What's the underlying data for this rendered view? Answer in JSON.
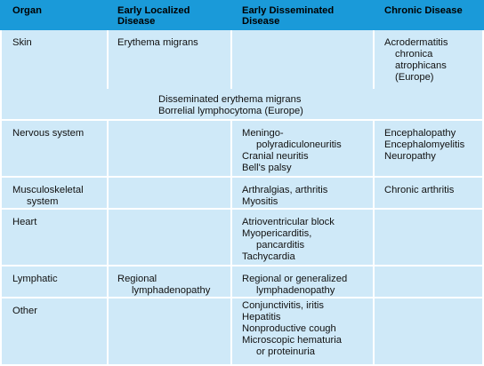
{
  "headers": [
    "Organ",
    "Early Localized|Disease",
    "Early Disseminated|Disease",
    "Chronic Disease"
  ],
  "rows": [
    {
      "organ": [
        "Skin"
      ],
      "localized": [
        "Erythema migrans"
      ],
      "disseminated": [],
      "chronic": [
        "Acrodermatitis",
        "chronica",
        "atrophicans",
        "(Europe)"
      ],
      "spanning": [
        "Disseminated erythema migrans",
        "Borrelial lymphocytoma (Europe)"
      ]
    },
    {
      "organ": [
        "Nervous system"
      ],
      "localized": [],
      "disseminated": [
        "Meningo-",
        "polyradiculoneuritis",
        "Cranial neuritis",
        "Bell's palsy"
      ],
      "chronic": [
        "Encephalopathy",
        "Encephalomyelitis",
        "Neuropathy"
      ]
    },
    {
      "organ": [
        "Musculoskeletal",
        "system"
      ],
      "localized": [],
      "disseminated": [
        "Arthralgias, arthritis",
        "Myositis"
      ],
      "chronic": [
        "Chronic arthritis"
      ]
    },
    {
      "organ": [
        "Heart"
      ],
      "localized": [],
      "disseminated": [
        "Atrioventricular block",
        "Myopericarditis,",
        "pancarditis",
        "Tachycardia"
      ],
      "chronic": []
    },
    {
      "organ": [
        "Lymphatic"
      ],
      "localized": [
        "Regional",
        "lymphadenopathy"
      ],
      "disseminated": [
        "Regional or generalized",
        "lymphadenopathy"
      ],
      "chronic": []
    },
    {
      "organ": [
        "Other"
      ],
      "localized": [],
      "disseminated": [
        "Conjunctivitis, iritis",
        "Hepatitis",
        "Nonproductive cough",
        "Microscopic hematuria",
        "or proteinuria"
      ],
      "chronic": []
    }
  ]
}
